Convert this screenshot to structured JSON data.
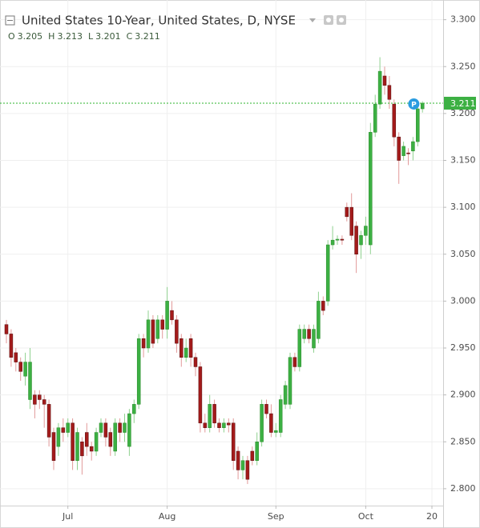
{
  "chart_data": {
    "type": "candlestick",
    "title": "United States 10-Year, United States, D, NYSE",
    "ohlc_legend": [
      {
        "label": "O",
        "value": 3.205
      },
      {
        "label": "H",
        "value": 3.213
      },
      {
        "label": "L",
        "value": 3.201
      },
      {
        "label": "C",
        "value": 3.211
      }
    ],
    "categories": [
      null,
      null,
      null,
      null,
      null,
      null,
      null,
      null,
      null,
      null,
      null,
      null,
      null,
      "Jul",
      null,
      null,
      null,
      null,
      null,
      null,
      null,
      null,
      null,
      null,
      null,
      null,
      null,
      null,
      null,
      null,
      null,
      null,
      null,
      null,
      "Aug",
      null,
      null,
      null,
      null,
      null,
      null,
      null,
      null,
      null,
      null,
      null,
      null,
      null,
      null,
      null,
      null,
      null,
      null,
      null,
      null,
      null,
      null,
      "Sep",
      null,
      null,
      null,
      null,
      null,
      null,
      null,
      null,
      null,
      null,
      null,
      null,
      null,
      null,
      null,
      null,
      null,
      null,
      "Oct",
      null,
      null,
      null,
      null,
      null,
      null,
      null,
      null,
      null,
      null,
      null,
      null,
      null,
      "20"
    ],
    "open": [
      2.975,
      2.965,
      2.945,
      2.935,
      2.92,
      2.895,
      2.9,
      2.9,
      2.895,
      2.89,
      2.86,
      2.845,
      2.865,
      2.86,
      2.87,
      2.83,
      2.85,
      2.86,
      2.845,
      2.84,
      2.86,
      2.87,
      2.86,
      2.84,
      2.87,
      2.86,
      2.845,
      2.88,
      2.89,
      2.96,
      2.95,
      2.98,
      2.96,
      2.98,
      2.97,
      2.99,
      2.98,
      2.96,
      2.94,
      2.96,
      2.94,
      2.93,
      2.87,
      2.865,
      2.89,
      2.87,
      2.865,
      2.87,
      2.87,
      2.84,
      2.82,
      2.83,
      2.84,
      2.83,
      2.85,
      2.89,
      2.88,
      2.86,
      2.86,
      2.89,
      2.89,
      2.94,
      2.93,
      2.96,
      2.97,
      2.95,
      2.96,
      3.0,
      3.0,
      3.06,
      3.065,
      3.066,
      3.1,
      3.1,
      3.08,
      3.06,
      3.07,
      3.06,
      3.18,
      3.21,
      3.24,
      3.23,
      3.21,
      3.175,
      3.155,
      3.158,
      3.16,
      3.17,
      3.205,
      null,
      null
    ],
    "high": [
      2.98,
      2.97,
      2.95,
      2.94,
      2.945,
      2.95,
      2.905,
      2.905,
      2.9,
      2.895,
      2.865,
      2.87,
      2.875,
      2.875,
      2.875,
      2.865,
      2.855,
      2.87,
      2.85,
      2.865,
      2.875,
      2.875,
      2.865,
      2.875,
      2.875,
      2.88,
      2.885,
      2.895,
      2.965,
      2.965,
      2.99,
      2.985,
      2.985,
      2.985,
      3.015,
      3.0,
      2.985,
      2.965,
      2.96,
      2.965,
      2.945,
      2.935,
      2.88,
      2.9,
      2.895,
      2.875,
      2.875,
      2.875,
      2.875,
      2.845,
      2.835,
      2.835,
      2.845,
      2.86,
      2.895,
      2.895,
      2.89,
      2.87,
      2.9,
      2.915,
      2.945,
      2.945,
      2.975,
      2.975,
      2.975,
      2.975,
      3.01,
      3.005,
      3.065,
      3.08,
      3.07,
      3.07,
      3.105,
      3.115,
      3.085,
      3.075,
      3.09,
      3.19,
      3.22,
      3.26,
      3.25,
      3.24,
      3.215,
      3.18,
      3.17,
      3.163,
      3.175,
      3.207,
      3.213,
      null,
      null
    ],
    "low": [
      2.955,
      2.93,
      2.925,
      2.915,
      2.91,
      2.885,
      2.875,
      2.885,
      2.865,
      2.845,
      2.82,
      2.835,
      2.85,
      2.855,
      2.82,
      2.82,
      2.815,
      2.835,
      2.83,
      2.835,
      2.855,
      2.845,
      2.835,
      2.835,
      2.85,
      2.85,
      2.835,
      2.87,
      2.885,
      2.94,
      2.945,
      2.95,
      2.955,
      2.96,
      2.96,
      2.975,
      2.945,
      2.93,
      2.935,
      2.93,
      2.92,
      2.86,
      2.86,
      2.86,
      2.865,
      2.86,
      2.86,
      2.86,
      2.82,
      2.81,
      2.81,
      2.805,
      2.825,
      2.825,
      2.845,
      2.875,
      2.855,
      2.855,
      2.855,
      2.885,
      2.885,
      2.925,
      2.925,
      2.955,
      2.955,
      2.945,
      2.955,
      2.985,
      2.995,
      3.055,
      3.06,
      3.06,
      3.085,
      3.065,
      3.03,
      3.045,
      3.06,
      3.05,
      3.175,
      3.205,
      3.22,
      3.205,
      3.165,
      3.125,
      3.15,
      3.145,
      3.15,
      3.165,
      3.201,
      null,
      null
    ],
    "close": [
      2.965,
      2.94,
      2.935,
      2.925,
      2.935,
      2.935,
      2.89,
      2.895,
      2.89,
      2.855,
      2.83,
      2.865,
      2.86,
      2.87,
      2.83,
      2.86,
      2.835,
      2.845,
      2.84,
      2.86,
      2.87,
      2.855,
      2.845,
      2.87,
      2.86,
      2.87,
      2.88,
      2.89,
      2.96,
      2.95,
      2.98,
      2.955,
      2.98,
      2.97,
      3.0,
      2.98,
      2.955,
      2.94,
      2.95,
      2.94,
      2.93,
      2.87,
      2.865,
      2.89,
      2.87,
      2.865,
      2.87,
      2.868,
      2.83,
      2.82,
      2.83,
      2.81,
      2.83,
      2.85,
      2.89,
      2.88,
      2.86,
      2.862,
      2.895,
      2.91,
      2.94,
      2.93,
      2.97,
      2.97,
      2.96,
      2.97,
      3.0,
      2.99,
      3.06,
      3.065,
      3.066,
      3.065,
      3.09,
      3.07,
      3.05,
      3.07,
      3.08,
      3.18,
      3.21,
      3.245,
      3.23,
      3.215,
      3.175,
      3.15,
      3.165,
      3.157,
      3.17,
      3.205,
      3.211,
      null,
      null
    ],
    "up_color": "#3cb043",
    "down_color": "#a31b1b",
    "current_price": 3.211,
    "price_marker": "P",
    "ylim": [
      2.782,
      3.321
    ],
    "yticks": [
      {
        "value": 2.8,
        "label": "2.800"
      },
      {
        "value": 2.85,
        "label": "2.850"
      },
      {
        "value": 2.9,
        "label": "2.900"
      },
      {
        "value": 2.95,
        "label": "2.950"
      },
      {
        "value": 3.0,
        "label": "3.000"
      },
      {
        "value": 3.05,
        "label": "3.050"
      },
      {
        "value": 3.1,
        "label": "3.100"
      },
      {
        "value": 3.15,
        "label": "3.150"
      },
      {
        "value": 3.2,
        "label": "3.200"
      },
      {
        "value": 3.25,
        "label": "3.250"
      },
      {
        "value": 3.3,
        "label": "3.300"
      }
    ],
    "grid": true
  }
}
